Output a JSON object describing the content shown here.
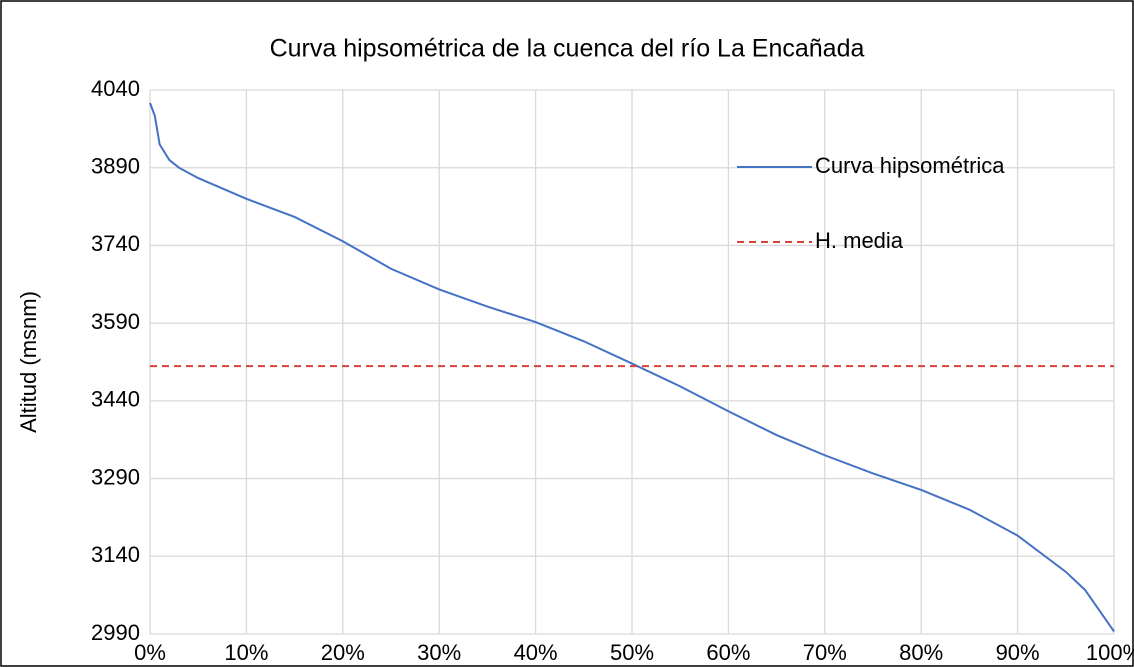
{
  "chart_data": {
    "type": "line",
    "title": "Curva hipsométrica de la cuenca del río La Encañada",
    "y_label": "Altitud (msnm)",
    "x": [
      0,
      0.5,
      1,
      2,
      3,
      5,
      10,
      15,
      20,
      25,
      30,
      35,
      40,
      45,
      50,
      55,
      60,
      65,
      70,
      75,
      80,
      85,
      90,
      95,
      97,
      100
    ],
    "series": [
      {
        "name": "Curva hipsométrica",
        "color": "#4472c4",
        "dash": false,
        "values": [
          4015,
          3990,
          3935,
          3905,
          3890,
          3870,
          3830,
          3795,
          3748,
          3695,
          3655,
          3622,
          3592,
          3555,
          3512,
          3468,
          3420,
          3374,
          3335,
          3300,
          3268,
          3230,
          3180,
          3110,
          3075,
          2995
        ]
      },
      {
        "name": "H. media",
        "color": "#d9413c",
        "dash": true,
        "x": [
          0,
          100
        ],
        "values": [
          3507,
          3507
        ]
      }
    ],
    "xlim": [
      0,
      100
    ],
    "xticks": [
      {
        "value": 0,
        "label": "0%"
      },
      {
        "value": 10,
        "label": "10%"
      },
      {
        "value": 20,
        "label": "20%"
      },
      {
        "value": 30,
        "label": "30%"
      },
      {
        "value": 40,
        "label": "40%"
      },
      {
        "value": 50,
        "label": "50%"
      },
      {
        "value": 60,
        "label": "60%"
      },
      {
        "value": 70,
        "label": "70%"
      },
      {
        "value": 80,
        "label": "80%"
      },
      {
        "value": 90,
        "label": "90%"
      },
      {
        "value": 100,
        "label": "100%"
      }
    ],
    "ylim": [
      2990,
      4040
    ],
    "yticks": [
      2990,
      3140,
      3290,
      3440,
      3590,
      3740,
      3890,
      4040
    ],
    "grid": true,
    "legend": "upper right"
  }
}
